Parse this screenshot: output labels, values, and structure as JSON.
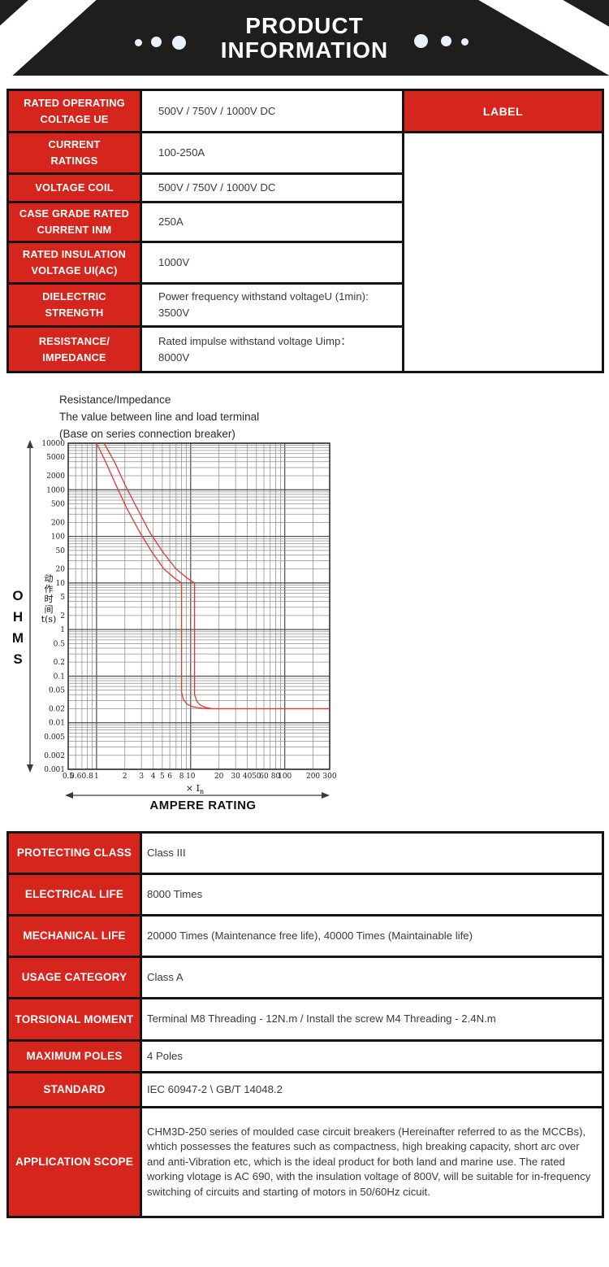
{
  "colors": {
    "accent-red": "#d5251d",
    "banner-black": "#201d1d",
    "line-black": "#151313",
    "dot-blue": "#e8f1fc",
    "curve-red": "#dd3a35"
  },
  "header": {
    "title": "PRODUCT\nINFORMATION"
  },
  "spec_table": {
    "label_header": "LABEL",
    "rows": [
      {
        "label": "RATED OPERATING\nCOLTAGE UE",
        "value": "500V / 750V / 1000V DC"
      },
      {
        "label": "CURRENT\nRATINGS",
        "value": "100-250A"
      },
      {
        "label": "VOLTAGE COIL",
        "value": "500V / 750V / 1000V DC"
      },
      {
        "label": "CASE GRADE RATED\nCURRENT INM",
        "value": "250A"
      },
      {
        "label": "RATED INSULATION\nVOLTAGE UI(AC)",
        "value": "1000V"
      },
      {
        "label": "DIELECTRIC\nSTRENGTH",
        "value": "Power frequency withstand voltageU (1min):\n3500V"
      },
      {
        "label": "RESISTANCE/\nIMPEDANCE",
        "value": "Rated impulse withstand voltage Uimp：\n8000V"
      }
    ]
  },
  "chart_data": {
    "type": "line",
    "title_lines": [
      "Resistance/Impedance",
      "The value between line and load terminal",
      "(Base on series connection breaker)"
    ],
    "x_axis": {
      "min": 0.5,
      "max": 300,
      "scale": "log",
      "tick_labels": [
        "0.5",
        "0.6",
        "0.8",
        "1",
        "2",
        "3",
        "4",
        "5",
        "6",
        "8",
        "10",
        "20",
        "30",
        "40",
        "50",
        "60",
        "80",
        "100",
        "200",
        "300"
      ],
      "unit_prefix": "× I",
      "unit_sub": "n",
      "label": "AMPERE RATING"
    },
    "y_axis": {
      "min": 0.001,
      "max": 10000,
      "scale": "log",
      "tick_labels": [
        "10000",
        "5000",
        "2000",
        "1000",
        "500",
        "200",
        "100",
        "50",
        "20",
        "10",
        "5",
        "2",
        "1",
        "0.5",
        "0.2",
        "0.1",
        "0.05",
        "0.02",
        "0.01",
        "0.005",
        "0.002",
        "0.001"
      ],
      "label": "动\n作\n时\n间\nt(s)",
      "side_label": "O\nH\nM\nS"
    },
    "grid": true,
    "legend": false,
    "series": [
      {
        "name": "trip-curve-min",
        "color": "#dd3a35",
        "points": [
          [
            1.0,
            10000
          ],
          [
            1.25,
            4000
          ],
          [
            1.6,
            1300
          ],
          [
            2.1,
            400
          ],
          [
            2.9,
            120
          ],
          [
            3.9,
            45
          ],
          [
            5.2,
            20
          ],
          [
            6.8,
            12.5
          ],
          [
            8,
            10
          ],
          [
            8,
            0.045
          ],
          [
            8.4,
            0.031
          ],
          [
            9.2,
            0.025
          ],
          [
            10.5,
            0.022
          ],
          [
            13,
            0.0205
          ],
          [
            15,
            0.02
          ],
          [
            300,
            0.02
          ]
        ]
      },
      {
        "name": "trip-curve-max",
        "color": "#dd3a35",
        "points": [
          [
            1.2,
            10000
          ],
          [
            1.55,
            4000
          ],
          [
            2.0,
            1300
          ],
          [
            2.7,
            400
          ],
          [
            3.7,
            120
          ],
          [
            5.1,
            45
          ],
          [
            7.0,
            20
          ],
          [
            9.3,
            12.5
          ],
          [
            11,
            10
          ],
          [
            11,
            0.04
          ],
          [
            11.6,
            0.029
          ],
          [
            12.6,
            0.024
          ],
          [
            14.2,
            0.0215
          ],
          [
            17,
            0.02
          ],
          [
            300,
            0.02
          ]
        ]
      }
    ]
  },
  "spec_table2": {
    "rows": [
      {
        "label": "PROTECTING CLASS",
        "value": "Class III"
      },
      {
        "label": "ELECTRICAL LIFE",
        "value": "8000 Times"
      },
      {
        "label": "MECHANICAL LIFE",
        "value": "20000 Times (Maintenance free life), 40000 Times (Maintainable life)"
      },
      {
        "label": "USAGE CATEGORY",
        "value": "Class A"
      },
      {
        "label": "TORSIONAL MOMENT",
        "value": " Terminal M8 Threading - 12N.m / Install the screw M4 Threading - 2.4N.m"
      },
      {
        "label": "MAXIMUM POLES",
        "value": "4 Poles"
      },
      {
        "label": "STANDARD",
        "value": "IEC 60947-2 \\ GB/T 14048.2"
      },
      {
        "label": "APPLICATION SCOPE",
        "value": "CHM3D-250 series of moulded case circuit breakers (Hereinafter referred to as the MCCBs), whtich possesses the features such as compactness, high breaking capacity, short arc over and anti-Vibration etc, which is the ideal product for both land and marine use. The rated working vlotage is AC 690, with the insulation voltage of 800V, will be suitable for in-frequency switching of circuits and starting of motors in 50/60Hz cicuit."
      }
    ]
  }
}
